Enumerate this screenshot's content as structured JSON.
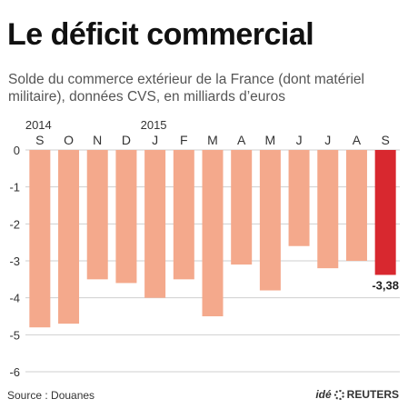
{
  "header": {
    "title": "Le déficit commercial",
    "subtitle": "Solde du commerce extérieur de la France (dont matériel militaire), données CVS, en milliards d’euros"
  },
  "footer": {
    "source": "Source : Douanes",
    "logo_prefix": "idé",
    "logo_brand": "REUTERS"
  },
  "chart_data": {
    "type": "bar",
    "categories": [
      "S",
      "O",
      "N",
      "D",
      "J",
      "F",
      "M",
      "A",
      "M",
      "J",
      "J",
      "A",
      "S"
    ],
    "year_labels": [
      {
        "label": "2014",
        "category_index": 0
      },
      {
        "label": "2015",
        "category_index": 4
      }
    ],
    "values": [
      -4.8,
      -4.7,
      -3.5,
      -3.6,
      -4.0,
      -3.5,
      -4.5,
      -3.1,
      -3.8,
      -2.6,
      -3.2,
      -3.0,
      -3.38
    ],
    "highlight_index": 12,
    "annotations": [
      {
        "category_index": 12,
        "text": "-3,38"
      }
    ],
    "yticks": [
      0,
      -1,
      -2,
      -3,
      -4,
      -5,
      -6
    ],
    "ytick_labels": [
      "0",
      "-1",
      "-2",
      "-3",
      "-4",
      "-5",
      "-6"
    ],
    "ylim": [
      -6,
      0
    ],
    "grid": true,
    "colors": {
      "bar": "#f4a98c",
      "highlight": "#d8282f",
      "grid": "#cfcfcf",
      "text": "#333333"
    }
  }
}
